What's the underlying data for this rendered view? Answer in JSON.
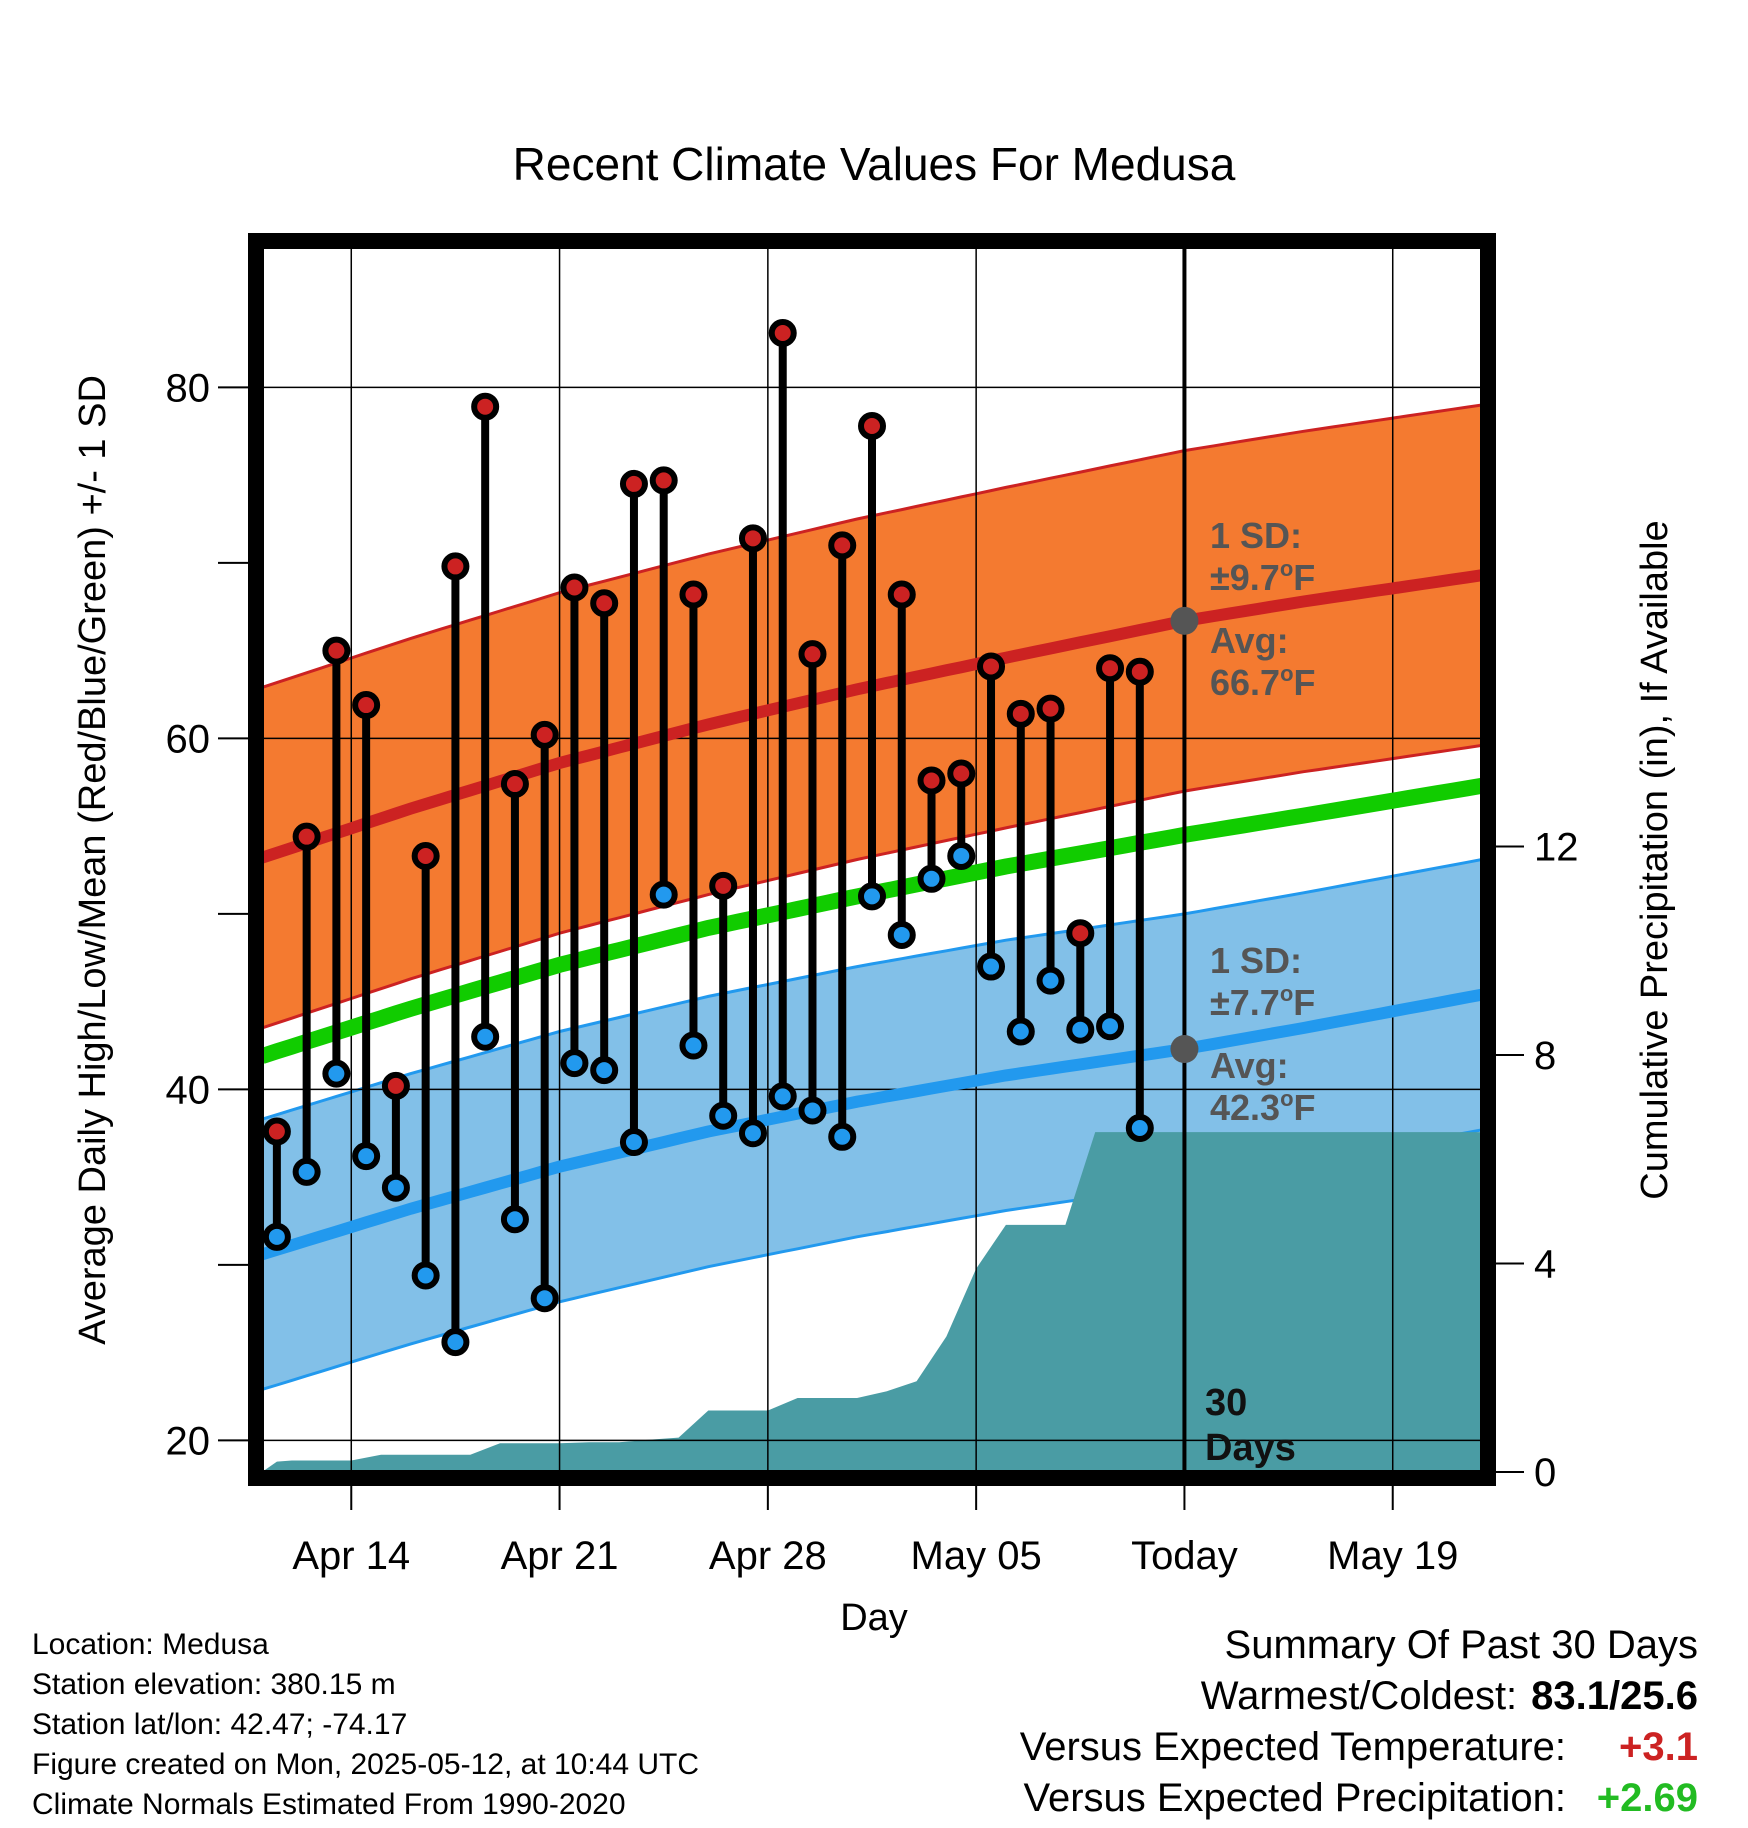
{
  "chart_data": {
    "type": "line",
    "title": "Recent Climate Values For Medusa",
    "xlabel": "Day",
    "ylabel": "Average Daily High/Low/Mean (Red/Blue/Green) +/- 1 SD",
    "y2label": "Cumulative Precipitation (in), If Available",
    "x_range_days": [
      0,
      41
    ],
    "x_ticks": [
      {
        "label": "Apr 14",
        "day": 3
      },
      {
        "label": "Apr 21",
        "day": 10
      },
      {
        "label": "Apr 28",
        "day": 17
      },
      {
        "label": "May 05",
        "day": 24
      },
      {
        "label": "Today",
        "day": 31
      },
      {
        "label": "May 19",
        "day": 38
      }
    ],
    "y_ticks": [
      20,
      40,
      60,
      80
    ],
    "ylim": [
      18.2,
      88
    ],
    "y2_ticks": [
      0,
      4,
      8,
      12
    ],
    "y2lim": [
      0,
      23.5
    ],
    "grid": true,
    "series": [
      {
        "name": "High",
        "color": "#cc2222",
        "values": [
          37.6,
          54.4,
          65.0,
          61.9,
          40.2,
          53.3,
          69.8,
          78.9,
          57.4,
          60.2,
          68.6,
          67.7,
          74.5,
          74.7,
          68.2,
          51.6,
          71.4,
          83.1,
          64.8,
          71.0,
          77.8,
          68.2,
          57.6,
          58.0,
          64.1,
          61.4,
          61.7,
          48.9,
          64.0,
          63.8
        ]
      },
      {
        "name": "Low",
        "color": "#2299ee",
        "values": [
          31.6,
          35.3,
          40.9,
          36.2,
          34.4,
          29.4,
          25.6,
          43.0,
          32.6,
          28.1,
          41.5,
          41.1,
          37.0,
          51.1,
          42.5,
          38.5,
          37.5,
          39.6,
          38.8,
          37.3,
          51.0,
          48.8,
          52.0,
          53.3,
          47.0,
          43.3,
          46.2,
          43.4,
          43.6,
          37.8
        ]
      },
      {
        "name": "Normal High",
        "color": "#cc2222",
        "days": [
          0,
          5,
          10,
          15,
          20,
          25,
          31,
          35,
          41
        ],
        "values": [
          53.2,
          56.0,
          58.6,
          60.8,
          62.8,
          64.6,
          66.7,
          67.8,
          69.3
        ]
      },
      {
        "name": "Normal Low",
        "color": "#2299ee",
        "days": [
          0,
          5,
          10,
          15,
          20,
          25,
          31,
          35,
          41
        ],
        "values": [
          30.6,
          33.2,
          35.6,
          37.6,
          39.3,
          40.8,
          42.3,
          43.5,
          45.4
        ]
      },
      {
        "name": "Normal Mean",
        "color": "#11cc00",
        "days": [
          0,
          5,
          10,
          15,
          20,
          25,
          31,
          35,
          41
        ],
        "values": [
          41.9,
          44.6,
          47.1,
          49.2,
          51.0,
          52.7,
          54.5,
          55.6,
          57.3
        ]
      },
      {
        "name": "Cumulative Precipitation",
        "color": "#4a9ca4",
        "axis": "y2",
        "days": [
          0,
          0.5,
          1,
          2,
          3,
          4,
          5,
          6,
          7,
          8,
          9,
          10,
          11,
          12,
          13,
          14,
          15,
          16,
          17,
          18,
          19,
          20,
          21,
          22,
          23,
          24,
          25,
          26,
          27,
          28,
          29,
          30,
          31,
          35,
          41
        ],
        "values": [
          0,
          0.2,
          0.22,
          0.22,
          0.22,
          0.33,
          0.33,
          0.33,
          0.33,
          0.55,
          0.55,
          0.55,
          0.57,
          0.57,
          0.62,
          0.66,
          1.18,
          1.18,
          1.18,
          1.42,
          1.42,
          1.42,
          1.55,
          1.74,
          2.6,
          3.9,
          4.74,
          4.74,
          4.74,
          6.52,
          6.52,
          6.52,
          6.52,
          6.52,
          6.52
        ]
      }
    ],
    "sd_high": "9.7",
    "sd_low": "7.7",
    "today_day": 31
  },
  "annotations": {
    "high_sd": "1 SD:",
    "high_sd_val": "±9.7",
    "high_avg": "Avg:",
    "high_avg_val": "66.7",
    "low_sd": "1 SD:",
    "low_sd_val": "±7.7",
    "low_avg": "Avg:",
    "low_avg_val": "42.3",
    "deg": "o",
    "unit": "F",
    "days_count": "30",
    "days_word": "Days"
  },
  "footer": {
    "location": "Location: Medusa",
    "elevation": "Station elevation: 380.15 m",
    "latlon": "Station lat/lon: 42.47; -74.17",
    "created": "Figure created on Mon, 2025-05-12, at 10:44 UTC",
    "normals": "Climate Normals Estimated From 1990-2020"
  },
  "summary": {
    "heading": "Summary Of Past 30 Days",
    "warm_cold_label": "Warmest/Coldest:",
    "warm_cold_value": "83.1/25.6",
    "temp_label": "Versus Expected Temperature:",
    "temp_value": "+3.1",
    "precip_label": "Versus Expected Precipitation:",
    "precip_value": "+2.69",
    "colors": {
      "positive_temp": "#cc2222",
      "positive_precip": "#22bb22"
    }
  }
}
